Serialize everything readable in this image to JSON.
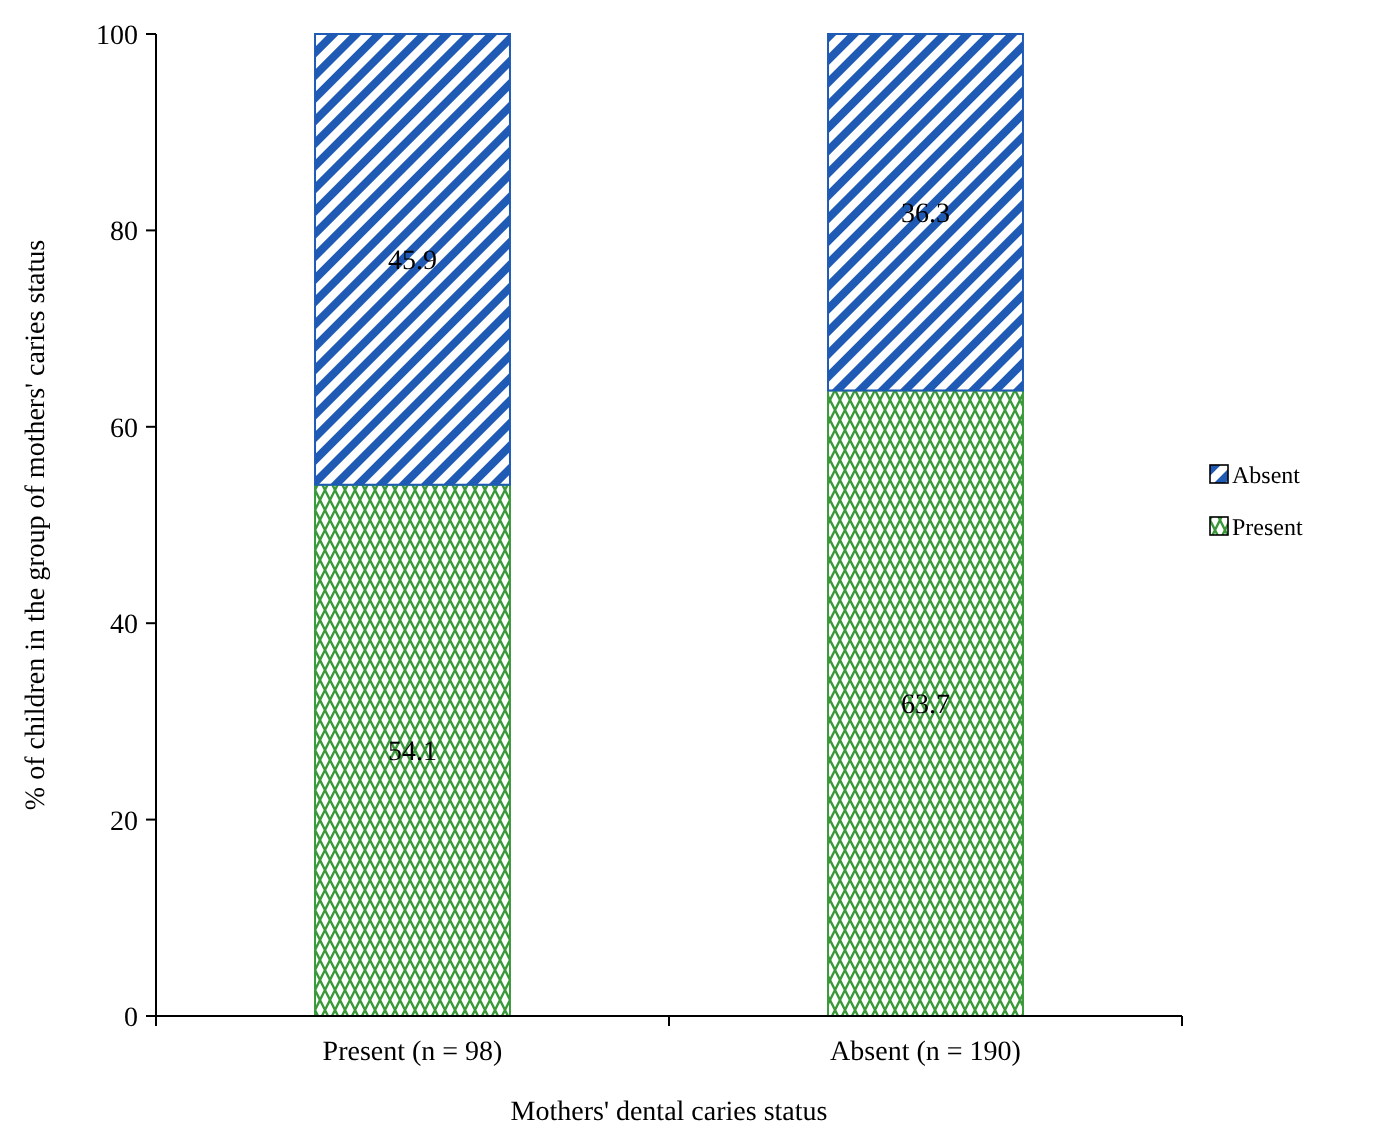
{
  "chart_data": {
    "type": "bar",
    "stacked": true,
    "xlabel": "Mothers' dental caries status",
    "ylabel": "% of children in the group of mothers' caries status",
    "categories": [
      "Present (n = 98)",
      "Absent (n = 190)"
    ],
    "series": [
      {
        "name": "Present",
        "color": "#3a9a3a",
        "values": [
          54.1,
          63.7
        ]
      },
      {
        "name": "Absent",
        "color": "#1f5bb5",
        "values": [
          45.9,
          36.3
        ]
      }
    ],
    "ylim": [
      0,
      100
    ],
    "yticks": [
      0,
      20,
      40,
      60,
      80,
      100
    ],
    "data_labels": true,
    "legend": "right",
    "grid": false
  }
}
